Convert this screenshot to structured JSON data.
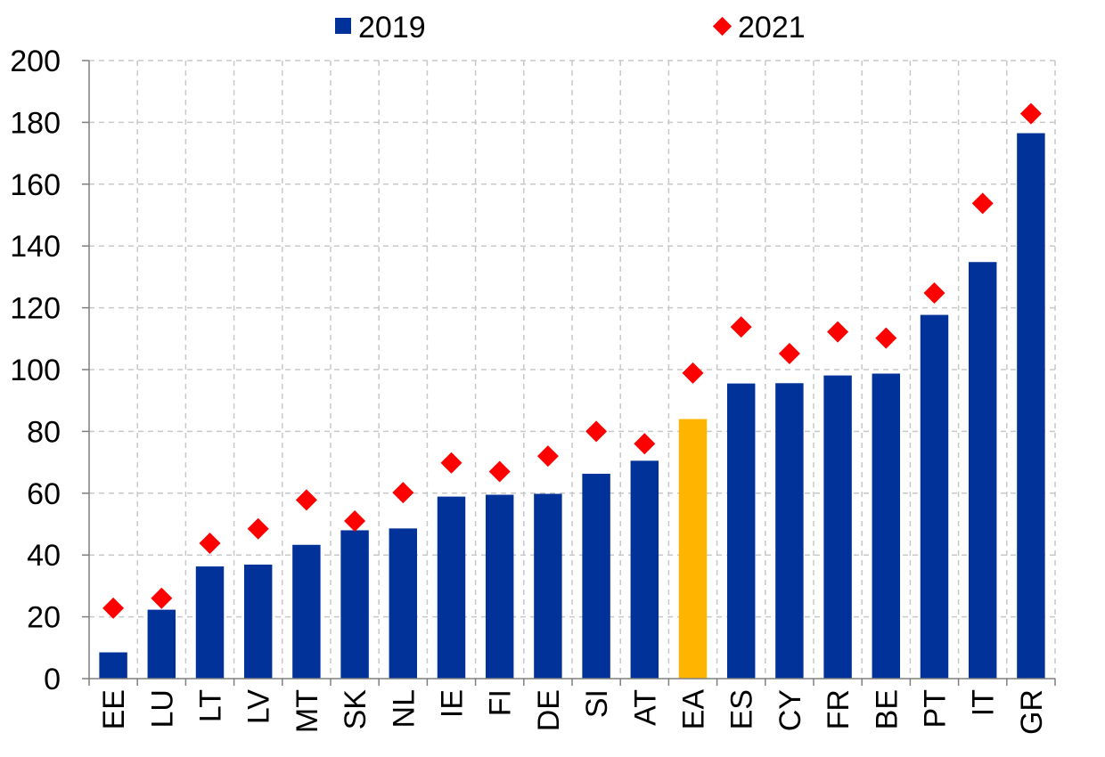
{
  "chart_data": {
    "type": "bar",
    "title": "",
    "xlabel": "",
    "ylabel": "",
    "ylim": [
      0,
      200
    ],
    "yticks": [
      0,
      20,
      40,
      60,
      80,
      100,
      120,
      140,
      160,
      180,
      200
    ],
    "grid": true,
    "legend_position": "top",
    "categories": [
      "EE",
      "LU",
      "LT",
      "LV",
      "MT",
      "SK",
      "NL",
      "IE",
      "FI",
      "DE",
      "SI",
      "AT",
      "EA",
      "ES",
      "CY",
      "FR",
      "BE",
      "PT",
      "IT",
      "GR"
    ],
    "highlight_category": "EA",
    "series": [
      {
        "name": "2019",
        "kind": "bar",
        "values": [
          8.5,
          22.3,
          36.3,
          36.9,
          43.3,
          48.0,
          48.6,
          58.9,
          59.5,
          59.8,
          66.3,
          70.5,
          84.0,
          95.5,
          95.6,
          98.1,
          98.7,
          117.7,
          134.8,
          176.5
        ]
      },
      {
        "name": "2021",
        "kind": "marker",
        "values": [
          22.8,
          26.0,
          43.8,
          48.5,
          57.8,
          51.0,
          60.2,
          69.8,
          67.0,
          72.0,
          80.0,
          76.0,
          98.9,
          113.8,
          105.2,
          112.2,
          110.2,
          124.8,
          153.8,
          182.8
        ]
      }
    ]
  },
  "colors": {
    "bar": "#003299",
    "highlight": "#ffb400",
    "marker": "#ff0000"
  }
}
